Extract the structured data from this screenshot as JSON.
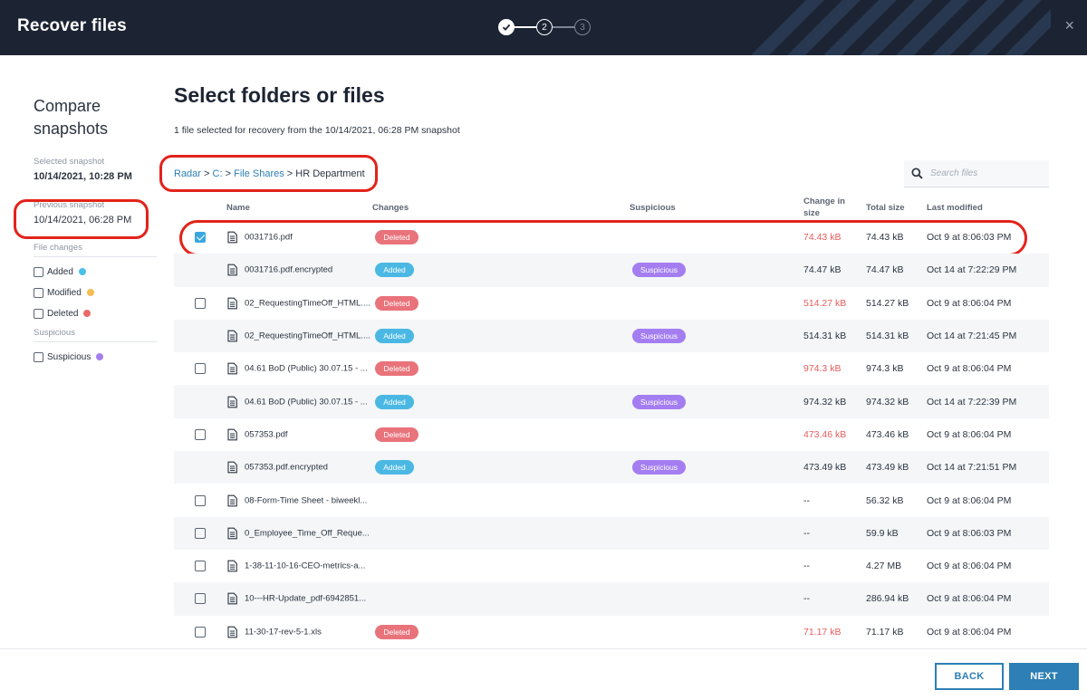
{
  "header": {
    "title": "Recover files",
    "steps": [
      {
        "label": "",
        "state": "done"
      },
      {
        "label": "2",
        "state": "current"
      },
      {
        "label": "3",
        "state": "future"
      }
    ],
    "close_label": "×"
  },
  "sidebar": {
    "title": "Compare snapshots",
    "selected_label": "Selected snapshot",
    "selected_value": "10/14/2021, 10:28 PM",
    "previous_label": "Previous snapshot",
    "previous_value": "10/14/2021, 06:28 PM",
    "file_changes_label": "File changes",
    "filters": [
      {
        "label": "Added",
        "color": "#4bc0ea"
      },
      {
        "label": "Modified",
        "color": "#f5bd53"
      },
      {
        "label": "Deleted",
        "color": "#e96a6a"
      }
    ],
    "suspicious_label": "Suspicious",
    "suspicious_filter": {
      "label": "Suspicious",
      "color": "#a47ef0"
    }
  },
  "main": {
    "title": "Select folders or files",
    "subtitle": "1 file selected for recovery from the 10/14/2021, 06:28 PM snapshot",
    "breadcrumb": {
      "items": [
        "Radar",
        "C:",
        "File Shares"
      ],
      "current": "HR Department",
      "separator": ">"
    },
    "search_placeholder": "Search files"
  },
  "table": {
    "headers": {
      "name": "Name",
      "changes": "Changes",
      "suspicious": "Suspicious",
      "change_size_1": "Change in",
      "change_size_2": "size",
      "total": "Total size",
      "modified": "Last modified"
    },
    "rows": [
      {
        "checkbox": "checked",
        "name": "0031716.pdf",
        "change": "Deleted",
        "suspicious": "",
        "change_size": "74.43 kB",
        "negative": true,
        "total": "74.43 kB",
        "modified": "Oct 9 at 8:06:03 PM"
      },
      {
        "checkbox": "none",
        "name": "0031716.pdf.encrypted",
        "change": "Added",
        "suspicious": "Suspicious",
        "change_size": "74.47 kB",
        "negative": false,
        "total": "74.47 kB",
        "modified": "Oct 14 at 7:22:29 PM"
      },
      {
        "checkbox": "empty",
        "name": "02_RequestingTimeOff_HTML....",
        "change": "Deleted",
        "suspicious": "",
        "change_size": "514.27 kB",
        "negative": true,
        "total": "514.27 kB",
        "modified": "Oct 9 at 8:06:04 PM"
      },
      {
        "checkbox": "none",
        "name": "02_RequestingTimeOff_HTML....",
        "change": "Added",
        "suspicious": "Suspicious",
        "change_size": "514.31 kB",
        "negative": false,
        "total": "514.31 kB",
        "modified": "Oct 14 at 7:21:45 PM"
      },
      {
        "checkbox": "empty",
        "name": "04.61 BoD (Public) 30.07.15 - ...",
        "change": "Deleted",
        "suspicious": "",
        "change_size": "974.3 kB",
        "negative": true,
        "total": "974.3 kB",
        "modified": "Oct 9 at 8:06:04 PM"
      },
      {
        "checkbox": "none",
        "name": "04.61 BoD (Public) 30.07.15 - ...",
        "change": "Added",
        "suspicious": "Suspicious",
        "change_size": "974.32 kB",
        "negative": false,
        "total": "974.32 kB",
        "modified": "Oct 14 at 7:22:39 PM"
      },
      {
        "checkbox": "empty",
        "name": "057353.pdf",
        "change": "Deleted",
        "suspicious": "",
        "change_size": "473.46 kB",
        "negative": true,
        "total": "473.46 kB",
        "modified": "Oct 9 at 8:06:04 PM"
      },
      {
        "checkbox": "none",
        "name": "057353.pdf.encrypted",
        "change": "Added",
        "suspicious": "Suspicious",
        "change_size": "473.49 kB",
        "negative": false,
        "total": "473.49 kB",
        "modified": "Oct 14 at 7:21:51 PM"
      },
      {
        "checkbox": "empty",
        "name": "08-Form-Time Sheet - biweekl...",
        "change": "",
        "suspicious": "",
        "change_size": "--",
        "negative": false,
        "total": "56.32 kB",
        "modified": "Oct 9 at 8:06:04 PM"
      },
      {
        "checkbox": "empty",
        "name": "0_Employee_Time_Off_Reque...",
        "change": "",
        "suspicious": "",
        "change_size": "--",
        "negative": false,
        "total": "59.9 kB",
        "modified": "Oct 9 at 8:06:03 PM"
      },
      {
        "checkbox": "empty",
        "name": "1-38-11-10-16-CEO-metrics-a...",
        "change": "",
        "suspicious": "",
        "change_size": "--",
        "negative": false,
        "total": "4.27 MB",
        "modified": "Oct 9 at 8:06:04 PM"
      },
      {
        "checkbox": "empty",
        "name": "10---HR-Update_pdf-6942851...",
        "change": "",
        "suspicious": "",
        "change_size": "--",
        "negative": false,
        "total": "286.94 kB",
        "modified": "Oct 9 at 8:06:04 PM"
      },
      {
        "checkbox": "empty",
        "name": "11-30-17-rev-5-1.xls",
        "change": "Deleted",
        "suspicious": "",
        "change_size": "71.17 kB",
        "negative": true,
        "total": "71.17 kB",
        "modified": "Oct 9 at 8:06:04 PM"
      }
    ]
  },
  "footer": {
    "back_label": "BACK",
    "next_label": "NEXT"
  }
}
